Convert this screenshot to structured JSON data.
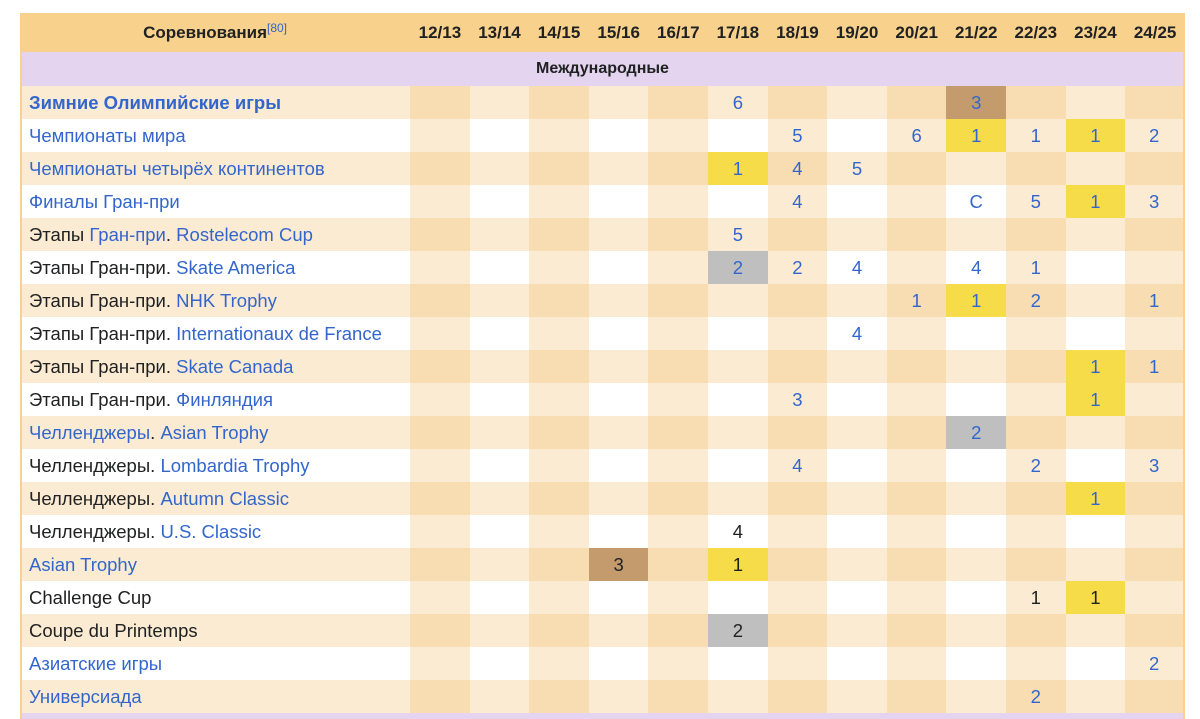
{
  "header": {
    "competitions_label": "Соревнования",
    "ref": "[80]",
    "seasons": [
      "12/13",
      "13/14",
      "14/15",
      "15/16",
      "16/17",
      "17/18",
      "18/19",
      "19/20",
      "20/21",
      "21/22",
      "22/23",
      "23/24",
      "24/25"
    ]
  },
  "section_title": "Международные",
  "rows": [
    {
      "prefix": "",
      "link": "Зимние Олимпийские игры",
      "bold": true,
      "results": [
        null,
        null,
        null,
        null,
        null,
        {
          "v": "6",
          "link": true
        },
        null,
        null,
        null,
        {
          "v": "3",
          "medal": "bronze",
          "link": true
        },
        null,
        null,
        null
      ]
    },
    {
      "prefix": "",
      "link": "Чемпионаты мира",
      "results": [
        null,
        null,
        null,
        null,
        null,
        null,
        {
          "v": "5",
          "link": true
        },
        null,
        {
          "v": "6",
          "link": true
        },
        {
          "v": "1",
          "medal": "gold",
          "link": true
        },
        {
          "v": "1",
          "link": true
        },
        {
          "v": "1",
          "medal": "gold",
          "link": true
        },
        {
          "v": "2",
          "link": true
        }
      ]
    },
    {
      "prefix": "",
      "link": "Чемпионаты четырёх континентов",
      "results": [
        null,
        null,
        null,
        null,
        null,
        {
          "v": "1",
          "medal": "gold",
          "link": true
        },
        {
          "v": "4",
          "link": true
        },
        {
          "v": "5",
          "link": true
        },
        null,
        null,
        null,
        null,
        null
      ]
    },
    {
      "prefix": "",
      "link": "Финалы Гран-при",
      "results": [
        null,
        null,
        null,
        null,
        null,
        null,
        {
          "v": "4",
          "link": true
        },
        null,
        null,
        {
          "v": "С",
          "link": true
        },
        {
          "v": "5",
          "link": true
        },
        {
          "v": "1",
          "medal": "gold",
          "link": true
        },
        {
          "v": "3",
          "link": true
        }
      ]
    },
    {
      "prefix": "Этапы ",
      "link_first": "Гран-при",
      "sep": ". ",
      "link": "Rostelecom Cup",
      "results": [
        null,
        null,
        null,
        null,
        null,
        {
          "v": "5",
          "link": true
        },
        null,
        null,
        null,
        null,
        null,
        null,
        null
      ]
    },
    {
      "prefix": "Этапы Гран-при. ",
      "link": "Skate America",
      "results": [
        null,
        null,
        null,
        null,
        null,
        {
          "v": "2",
          "medal": "silver",
          "link": true
        },
        {
          "v": "2",
          "link": true
        },
        {
          "v": "4",
          "link": true
        },
        null,
        {
          "v": "4",
          "link": true
        },
        {
          "v": "1",
          "link": true
        },
        null,
        null
      ]
    },
    {
      "prefix": "Этапы Гран-при. ",
      "link": "NHK Trophy",
      "results": [
        null,
        null,
        null,
        null,
        null,
        null,
        null,
        null,
        {
          "v": "1",
          "link": true
        },
        {
          "v": "1",
          "medal": "gold",
          "link": true
        },
        {
          "v": "2",
          "link": true
        },
        null,
        {
          "v": "1",
          "link": true
        }
      ]
    },
    {
      "prefix": "Этапы Гран-при. ",
      "link": "Internationaux de France",
      "results": [
        null,
        null,
        null,
        null,
        null,
        null,
        null,
        {
          "v": "4",
          "link": true
        },
        null,
        null,
        null,
        null,
        null
      ]
    },
    {
      "prefix": "Этапы Гран-при. ",
      "link": "Skate Canada",
      "results": [
        null,
        null,
        null,
        null,
        null,
        null,
        null,
        null,
        null,
        null,
        null,
        {
          "v": "1",
          "medal": "gold",
          "link": true
        },
        {
          "v": "1",
          "link": true
        }
      ]
    },
    {
      "prefix": "Этапы Гран-при. ",
      "link": "Финляндия",
      "results": [
        null,
        null,
        null,
        null,
        null,
        null,
        {
          "v": "3",
          "link": true
        },
        null,
        null,
        null,
        null,
        {
          "v": "1",
          "medal": "gold",
          "link": true
        },
        null
      ]
    },
    {
      "prefix": "",
      "link_first": "Челленджеры",
      "sep": ". ",
      "link": "Asian Trophy",
      "results": [
        null,
        null,
        null,
        null,
        null,
        null,
        null,
        null,
        null,
        {
          "v": "2",
          "medal": "silver",
          "link": true
        },
        null,
        null,
        null
      ]
    },
    {
      "prefix": "Челленджеры. ",
      "link": "Lombardia Trophy",
      "results": [
        null,
        null,
        null,
        null,
        null,
        null,
        {
          "v": "4",
          "link": true
        },
        null,
        null,
        null,
        {
          "v": "2",
          "link": true
        },
        null,
        {
          "v": "3",
          "link": true
        }
      ]
    },
    {
      "prefix": "Челленджеры. ",
      "link": "Autumn Classic",
      "results": [
        null,
        null,
        null,
        null,
        null,
        null,
        null,
        null,
        null,
        null,
        null,
        {
          "v": "1",
          "medal": "gold",
          "link": true
        },
        null
      ]
    },
    {
      "prefix": "Челленджеры. ",
      "link": "U.S. Classic",
      "results": [
        null,
        null,
        null,
        null,
        null,
        {
          "v": "4",
          "link": false
        },
        null,
        null,
        null,
        null,
        null,
        null,
        null
      ]
    },
    {
      "prefix": "",
      "link": "Asian Trophy",
      "results": [
        null,
        null,
        null,
        {
          "v": "3",
          "medal": "bronze",
          "link": false
        },
        null,
        {
          "v": "1",
          "medal": "gold",
          "link": false
        },
        null,
        null,
        null,
        null,
        null,
        null,
        null
      ]
    },
    {
      "prefix": "Challenge Cup",
      "link": "",
      "results": [
        null,
        null,
        null,
        null,
        null,
        null,
        null,
        null,
        null,
        null,
        {
          "v": "1",
          "link": false
        },
        {
          "v": "1",
          "medal": "gold",
          "link": false
        },
        null
      ]
    },
    {
      "prefix": "Coupe du Printemps",
      "link": "",
      "results": [
        null,
        null,
        null,
        null,
        null,
        {
          "v": "2",
          "medal": "silver",
          "link": false
        },
        null,
        null,
        null,
        null,
        null,
        null,
        null
      ]
    },
    {
      "prefix": "",
      "link": "Азиатские игры",
      "results": [
        null,
        null,
        null,
        null,
        null,
        null,
        null,
        null,
        null,
        null,
        null,
        null,
        {
          "v": "2",
          "link": true
        }
      ]
    },
    {
      "prefix": "",
      "link": "Универсиада",
      "results": [
        null,
        null,
        null,
        null,
        null,
        null,
        null,
        null,
        null,
        null,
        {
          "v": "2",
          "link": true
        },
        null,
        null
      ]
    }
  ],
  "colors": {
    "header_bg": "#f8d18c",
    "section_bg": "#e4d4ef",
    "gold": "#f7dc4a",
    "silver": "#bfbfbf",
    "bronze": "#c49b6c",
    "link": "#3366cc"
  }
}
